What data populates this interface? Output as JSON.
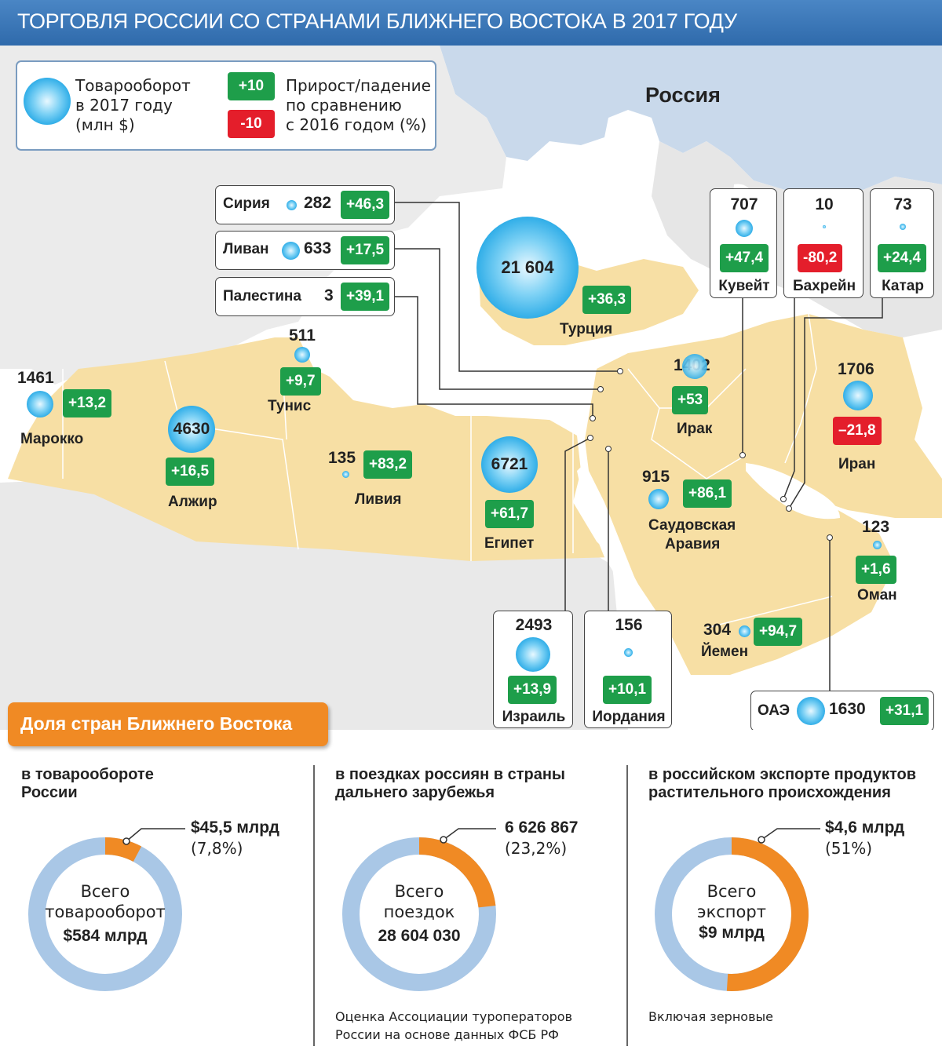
{
  "title": "ТОРГОВЛЯ РОССИИ СО СТРАНАМИ БЛИЖНЕГО ВОСТОКА В 2017 ГОДУ",
  "map_label": "Россия",
  "legend": {
    "bubble_text": [
      "Товарооборот",
      "в 2017 году",
      "(млн $)"
    ],
    "pos_sample": "+10",
    "neg_sample": "-10",
    "change_text": [
      "Прирост/падение",
      "по сравнению",
      "с 2016 годом (%)"
    ]
  },
  "colors": {
    "header": "#3a78b8",
    "land_arab": "#f7dfa4",
    "sea": "#ffffff",
    "positive": "#1e9e4a",
    "negative": "#e41e2b",
    "bubble": "#26a9e6",
    "accent": "#f08a24",
    "ring": "#a9c7e6"
  },
  "countries": [
    {
      "name": "Турция",
      "turnover": "21 604",
      "change": "+36,3",
      "dir": "up"
    },
    {
      "name": "Египет",
      "turnover": "6721",
      "change": "+61,7",
      "dir": "up"
    },
    {
      "name": "Алжир",
      "turnover": "4630",
      "change": "+16,5",
      "dir": "up"
    },
    {
      "name": "Израиль",
      "turnover": "2493",
      "change": "+13,9",
      "dir": "up"
    },
    {
      "name": "Иран",
      "turnover": "1706",
      "change": "–21,8",
      "dir": "down"
    },
    {
      "name": "ОАЭ",
      "turnover": "1630",
      "change": "+31,1",
      "dir": "up"
    },
    {
      "name": "Марокко",
      "turnover": "1461",
      "change": "+13,2",
      "dir": "up"
    },
    {
      "name": "Ирак",
      "turnover": "1402",
      "change": "+53",
      "dir": "up"
    },
    {
      "name": "Саудовская Аравия",
      "name_lines": [
        "Саудовская",
        "Аравия"
      ],
      "turnover": "915",
      "change": "+86,1",
      "dir": "up"
    },
    {
      "name": "Кувейт",
      "turnover": "707",
      "change": "+47,4",
      "dir": "up"
    },
    {
      "name": "Ливан",
      "turnover": "633",
      "change": "+17,5",
      "dir": "up"
    },
    {
      "name": "Тунис",
      "turnover": "511",
      "change": "+9,7",
      "dir": "up"
    },
    {
      "name": "Йемен",
      "turnover": "304",
      "change": "+94,7",
      "dir": "up"
    },
    {
      "name": "Сирия",
      "turnover": "282",
      "change": "+46,3",
      "dir": "up"
    },
    {
      "name": "Иордания",
      "turnover": "156",
      "change": "+10,1",
      "dir": "up"
    },
    {
      "name": "Ливия",
      "turnover": "135",
      "change": "+83,2",
      "dir": "up"
    },
    {
      "name": "Оман",
      "turnover": "123",
      "change": "+1,6",
      "dir": "up"
    },
    {
      "name": "Катар",
      "turnover": "73",
      "change": "+24,4",
      "dir": "up"
    },
    {
      "name": "Бахрейн",
      "turnover": "10",
      "change": "-80,2",
      "dir": "down"
    },
    {
      "name": "Палестина",
      "turnover": "3",
      "change": "+39,1",
      "dir": "up"
    }
  ],
  "share": {
    "tab_label": "Доля стран Ближнего Востока",
    "panels": [
      {
        "title": [
          "в товарообороте",
          "России"
        ],
        "value": "$45,5 млрд",
        "pct_label": "(7,8%)",
        "share": 0.078,
        "center": [
          "Всего",
          "товарооборот"
        ],
        "total": "$584 млрд",
        "note": []
      },
      {
        "title": [
          "в поездках россиян в страны",
          "дальнего зарубежья"
        ],
        "value": "6 626 867",
        "pct_label": "(23,2%)",
        "share": 0.232,
        "center": [
          "Всего",
          "поездок"
        ],
        "total": "28 604 030",
        "note": [
          "Оценка Ассоциации туроператоров",
          "России на основе данных ФСБ РФ"
        ]
      },
      {
        "title": [
          "в российском экспорте продуктов",
          "растительного происхождения"
        ],
        "value": "$4,6 млрд",
        "pct_label": "(51%)",
        "share": 0.51,
        "center": [
          "Всего",
          "экспорт"
        ],
        "total": "$9 млрд",
        "note": [
          "Включая зерновые"
        ]
      }
    ]
  }
}
